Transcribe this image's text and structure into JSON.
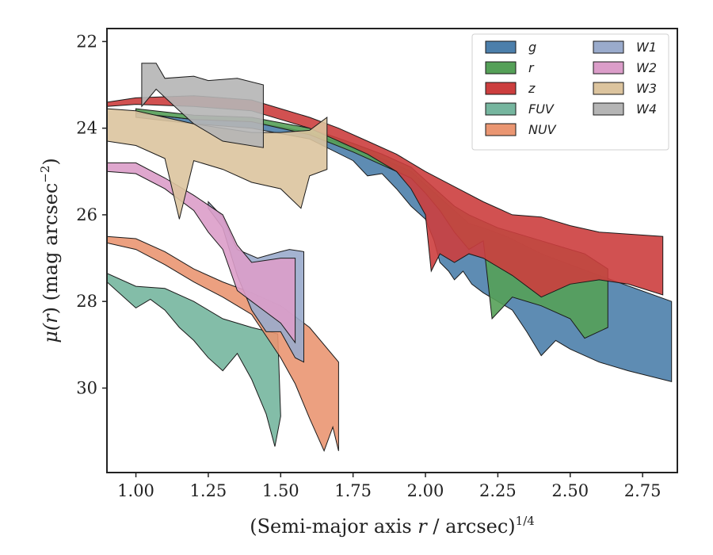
{
  "chart_data": {
    "type": "area",
    "xlabel": "(Semi-major axis r / arcsec)",
    "xlabel_parts": {
      "prefix": "(Semi-major axis ",
      "var": "r",
      "suffix": " / arcsec)",
      "sup": "1/4"
    },
    "ylabel": "μ(r) (mag arcsec⁻²)",
    "ylabel_parts": {
      "mu": "μ(",
      "var": "r",
      "close": ")",
      "unit": " (mag arcsec",
      "sup": "−2",
      "end": ")"
    },
    "xlim": [
      0.9,
      2.87
    ],
    "ylim": [
      31.95,
      21.7
    ],
    "y_inverted": true,
    "x_ticks": [
      {
        "value": 1.0,
        "label": "1.00"
      },
      {
        "value": 1.25,
        "label": "1.25"
      },
      {
        "value": 1.5,
        "label": "1.50"
      },
      {
        "value": 1.75,
        "label": "1.75"
      },
      {
        "value": 2.0,
        "label": "2.00"
      },
      {
        "value": 2.25,
        "label": "2.25"
      },
      {
        "value": 2.5,
        "label": "2.50"
      },
      {
        "value": 2.75,
        "label": "2.75"
      }
    ],
    "y_ticks": [
      {
        "value": 22,
        "label": "22"
      },
      {
        "value": 24,
        "label": "24"
      },
      {
        "value": 26,
        "label": "26"
      },
      {
        "value": 28,
        "label": "28"
      },
      {
        "value": 30,
        "label": "30"
      }
    ],
    "grid": false,
    "legend": {
      "position": "top-right",
      "columns": 2
    },
    "series": [
      {
        "name": "g",
        "color": "#4c7fab",
        "upper": [
          [
            1.0,
            23.65
          ],
          [
            1.2,
            23.8
          ],
          [
            1.4,
            23.85
          ],
          [
            1.6,
            24.1
          ],
          [
            1.75,
            24.45
          ],
          [
            1.85,
            24.7
          ],
          [
            1.95,
            25.0
          ],
          [
            2.0,
            25.3
          ],
          [
            2.05,
            25.6
          ],
          [
            2.1,
            25.9
          ],
          [
            2.15,
            26.2
          ],
          [
            2.2,
            26.3
          ],
          [
            2.28,
            26.5
          ],
          [
            2.4,
            26.9
          ],
          [
            2.6,
            27.4
          ],
          [
            2.85,
            28.0
          ]
        ],
        "lower": [
          [
            1.0,
            23.75
          ],
          [
            1.2,
            23.9
          ],
          [
            1.4,
            24.0
          ],
          [
            1.6,
            24.25
          ],
          [
            1.75,
            24.75
          ],
          [
            1.8,
            25.1
          ],
          [
            1.85,
            25.05
          ],
          [
            1.9,
            25.4
          ],
          [
            1.95,
            25.8
          ],
          [
            2.0,
            26.1
          ],
          [
            2.03,
            26.6
          ],
          [
            2.05,
            27.1
          ],
          [
            2.08,
            27.3
          ],
          [
            2.1,
            27.5
          ],
          [
            2.13,
            27.3
          ],
          [
            2.16,
            27.6
          ],
          [
            2.2,
            27.8
          ],
          [
            2.25,
            28.0
          ],
          [
            2.3,
            28.2
          ],
          [
            2.35,
            28.7
          ],
          [
            2.4,
            29.25
          ],
          [
            2.45,
            28.9
          ],
          [
            2.5,
            29.1
          ],
          [
            2.6,
            29.4
          ],
          [
            2.7,
            29.6
          ],
          [
            2.85,
            29.85
          ]
        ]
      },
      {
        "name": "r",
        "color": "#55a058",
        "upper": [
          [
            1.0,
            23.55
          ],
          [
            1.2,
            23.7
          ],
          [
            1.4,
            23.75
          ],
          [
            1.6,
            24.0
          ],
          [
            1.75,
            24.35
          ],
          [
            1.85,
            24.6
          ],
          [
            1.95,
            24.9
          ],
          [
            2.0,
            25.2
          ],
          [
            2.05,
            25.5
          ],
          [
            2.1,
            25.8
          ],
          [
            2.15,
            26.0
          ],
          [
            2.25,
            26.3
          ],
          [
            2.4,
            26.6
          ],
          [
            2.55,
            26.9
          ],
          [
            2.63,
            27.25
          ]
        ],
        "lower": [
          [
            1.0,
            23.65
          ],
          [
            1.2,
            23.8
          ],
          [
            1.4,
            23.85
          ],
          [
            1.6,
            24.15
          ],
          [
            1.75,
            24.55
          ],
          [
            1.85,
            24.85
          ],
          [
            1.95,
            25.15
          ],
          [
            2.0,
            25.5
          ],
          [
            2.05,
            25.9
          ],
          [
            2.1,
            26.4
          ],
          [
            2.15,
            26.8
          ],
          [
            2.2,
            26.6
          ],
          [
            2.23,
            28.4
          ],
          [
            2.3,
            27.9
          ],
          [
            2.4,
            28.1
          ],
          [
            2.5,
            28.4
          ],
          [
            2.55,
            28.85
          ],
          [
            2.63,
            28.6
          ]
        ]
      },
      {
        "name": "z",
        "color": "#cc3e3e",
        "upper": [
          [
            0.9,
            23.4
          ],
          [
            1.0,
            23.3
          ],
          [
            1.2,
            23.25
          ],
          [
            1.4,
            23.35
          ],
          [
            1.5,
            23.55
          ],
          [
            1.6,
            23.75
          ],
          [
            1.7,
            24.0
          ],
          [
            1.8,
            24.3
          ],
          [
            1.9,
            24.6
          ],
          [
            2.0,
            25.0
          ],
          [
            2.1,
            25.35
          ],
          [
            2.2,
            25.7
          ],
          [
            2.3,
            26.0
          ],
          [
            2.4,
            26.05
          ],
          [
            2.5,
            26.25
          ],
          [
            2.6,
            26.4
          ],
          [
            2.82,
            26.5
          ]
        ],
        "lower": [
          [
            0.9,
            23.5
          ],
          [
            1.0,
            23.45
          ],
          [
            1.2,
            23.5
          ],
          [
            1.4,
            23.6
          ],
          [
            1.5,
            23.8
          ],
          [
            1.6,
            24.0
          ],
          [
            1.7,
            24.3
          ],
          [
            1.8,
            24.6
          ],
          [
            1.9,
            25.0
          ],
          [
            1.95,
            25.4
          ],
          [
            2.0,
            26.0
          ],
          [
            2.02,
            27.3
          ],
          [
            2.05,
            26.9
          ],
          [
            2.1,
            27.1
          ],
          [
            2.15,
            26.9
          ],
          [
            2.2,
            27.0
          ],
          [
            2.3,
            27.4
          ],
          [
            2.4,
            27.9
          ],
          [
            2.5,
            27.6
          ],
          [
            2.6,
            27.5
          ],
          [
            2.7,
            27.6
          ],
          [
            2.82,
            27.85
          ]
        ]
      },
      {
        "name": "FUV",
        "color": "#76b69f",
        "upper": [
          [
            0.9,
            27.35
          ],
          [
            1.0,
            27.65
          ],
          [
            1.1,
            27.7
          ],
          [
            1.2,
            28.0
          ],
          [
            1.3,
            28.4
          ],
          [
            1.4,
            28.6
          ],
          [
            1.49,
            28.75
          ]
        ],
        "lower": [
          [
            0.9,
            27.55
          ],
          [
            1.0,
            28.15
          ],
          [
            1.05,
            27.95
          ],
          [
            1.1,
            28.2
          ],
          [
            1.15,
            28.6
          ],
          [
            1.2,
            28.9
          ],
          [
            1.25,
            29.3
          ],
          [
            1.3,
            29.6
          ],
          [
            1.35,
            29.2
          ],
          [
            1.4,
            29.8
          ],
          [
            1.45,
            30.6
          ],
          [
            1.48,
            31.35
          ],
          [
            1.5,
            30.65
          ]
        ]
      },
      {
        "name": "NUV",
        "color": "#ea9672",
        "upper": [
          [
            0.9,
            26.5
          ],
          [
            1.0,
            26.55
          ],
          [
            1.1,
            26.85
          ],
          [
            1.2,
            27.25
          ],
          [
            1.3,
            27.55
          ],
          [
            1.4,
            27.8
          ],
          [
            1.5,
            28.1
          ],
          [
            1.6,
            28.6
          ],
          [
            1.7,
            29.4
          ]
        ],
        "lower": [
          [
            0.9,
            26.65
          ],
          [
            1.0,
            26.8
          ],
          [
            1.1,
            27.15
          ],
          [
            1.2,
            27.55
          ],
          [
            1.3,
            27.9
          ],
          [
            1.4,
            28.3
          ],
          [
            1.45,
            28.8
          ],
          [
            1.5,
            29.3
          ],
          [
            1.55,
            29.9
          ],
          [
            1.6,
            30.7
          ],
          [
            1.65,
            31.45
          ],
          [
            1.68,
            30.9
          ],
          [
            1.7,
            31.45
          ]
        ]
      },
      {
        "name": "W1",
        "color": "#9aabcc",
        "upper": [
          [
            1.25,
            25.7
          ],
          [
            1.3,
            26.05
          ],
          [
            1.35,
            26.8
          ],
          [
            1.42,
            27.0
          ],
          [
            1.5,
            26.85
          ],
          [
            1.53,
            26.8
          ],
          [
            1.58,
            26.85
          ]
        ],
        "lower": [
          [
            1.25,
            25.85
          ],
          [
            1.3,
            26.3
          ],
          [
            1.35,
            27.4
          ],
          [
            1.4,
            28.2
          ],
          [
            1.45,
            28.7
          ],
          [
            1.5,
            28.7
          ],
          [
            1.55,
            29.3
          ],
          [
            1.58,
            29.4
          ]
        ]
      },
      {
        "name": "W2",
        "color": "#db9dc9",
        "upper": [
          [
            0.9,
            24.8
          ],
          [
            1.0,
            24.8
          ],
          [
            1.1,
            25.15
          ],
          [
            1.2,
            25.55
          ],
          [
            1.3,
            26.0
          ],
          [
            1.35,
            26.7
          ],
          [
            1.4,
            27.1
          ],
          [
            1.5,
            27.0
          ],
          [
            1.55,
            27.0
          ]
        ],
        "lower": [
          [
            0.9,
            25.0
          ],
          [
            1.0,
            25.05
          ],
          [
            1.1,
            25.4
          ],
          [
            1.2,
            25.9
          ],
          [
            1.25,
            26.4
          ],
          [
            1.3,
            26.8
          ],
          [
            1.35,
            27.75
          ],
          [
            1.4,
            28.0
          ],
          [
            1.5,
            28.5
          ],
          [
            1.55,
            28.95
          ]
        ]
      },
      {
        "name": "W3",
        "color": "#dcc49e",
        "upper": [
          [
            0.9,
            23.55
          ],
          [
            1.0,
            23.6
          ],
          [
            1.1,
            23.75
          ],
          [
            1.2,
            23.9
          ],
          [
            1.3,
            24.0
          ],
          [
            1.4,
            24.1
          ],
          [
            1.5,
            24.1
          ],
          [
            1.6,
            24.05
          ],
          [
            1.66,
            23.75
          ]
        ],
        "lower": [
          [
            0.9,
            24.3
          ],
          [
            1.0,
            24.4
          ],
          [
            1.1,
            24.7
          ],
          [
            1.15,
            26.1
          ],
          [
            1.2,
            24.75
          ],
          [
            1.3,
            24.95
          ],
          [
            1.4,
            25.25
          ],
          [
            1.5,
            25.4
          ],
          [
            1.57,
            25.85
          ],
          [
            1.6,
            25.1
          ],
          [
            1.66,
            24.95
          ]
        ]
      },
      {
        "name": "W4",
        "color": "#b5b5b5",
        "upper": [
          [
            1.02,
            22.5
          ],
          [
            1.07,
            22.5
          ],
          [
            1.1,
            22.85
          ],
          [
            1.2,
            22.8
          ],
          [
            1.25,
            22.9
          ],
          [
            1.35,
            22.85
          ],
          [
            1.44,
            23.0
          ]
        ],
        "lower": [
          [
            1.02,
            23.5
          ],
          [
            1.07,
            23.1
          ],
          [
            1.15,
            23.6
          ],
          [
            1.2,
            23.9
          ],
          [
            1.3,
            24.3
          ],
          [
            1.44,
            24.45
          ]
        ]
      }
    ]
  }
}
